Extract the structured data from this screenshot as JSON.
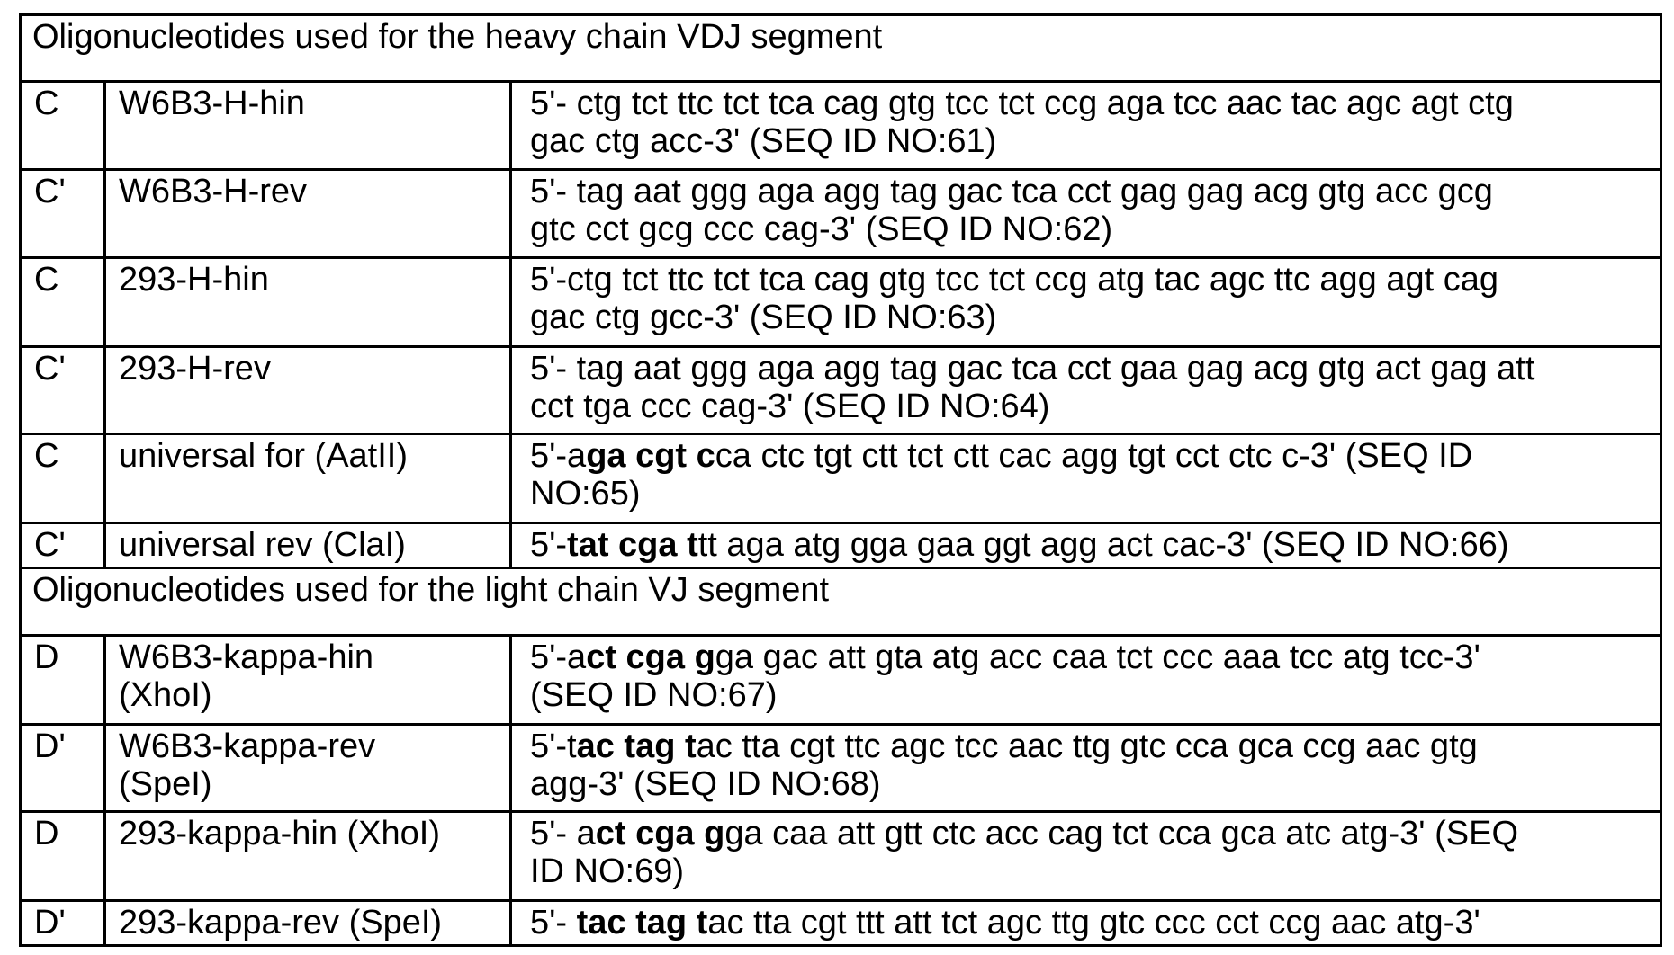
{
  "rows": [
    {
      "section": "Oligonucleotides used for the heavy chain VDJ segment"
    },
    {
      "code": "C",
      "name": [
        "W6B3-H-hin"
      ],
      "seq": [
        [
          {
            "t": "5'- ctg tct ttc tct tca cag gtg tcc tct ccg aga tcc aac tac agc agt ctg"
          }
        ],
        [
          {
            "t": "gac ctg acc-3' (SEQ ID NO:61)"
          }
        ]
      ]
    },
    {
      "code": "C'",
      "name": [
        "W6B3-H-rev"
      ],
      "seq": [
        [
          {
            "t": "5'- tag aat ggg aga agg tag gac tca cct gag gag acg gtg acc gcg"
          }
        ],
        [
          {
            "t": "gtc cct gcg ccc cag-3' (SEQ ID NO:62)"
          }
        ]
      ]
    },
    {
      "code": "C",
      "name": [
        "293-H-hin"
      ],
      "seq": [
        [
          {
            "t": "5'-ctg tct ttc tct tca cag gtg tcc tct ccg atg tac agc ttc agg agt cag"
          }
        ],
        [
          {
            "t": "gac ctg gcc-3' (SEQ ID NO:63)"
          }
        ]
      ]
    },
    {
      "code": "C'",
      "name": [
        "293-H-rev"
      ],
      "seq": [
        [
          {
            "t": "5'- tag aat ggg aga agg tag gac tca cct gaa gag acg gtg act gag att"
          }
        ],
        [
          {
            "t": "cct tga ccc cag-3' (SEQ ID NO:64)"
          }
        ]
      ]
    },
    {
      "code": "C",
      "name": [
        "universal for (AatII)"
      ],
      "seq": [
        [
          {
            "t": "5'-a"
          },
          {
            "t": "ga cgt c",
            "b": true
          },
          {
            "t": "ca ctc tgt ctt tct ctt cac agg tgt cct ctc c-3' (SEQ ID"
          }
        ],
        [
          {
            "t": "NO:65)"
          }
        ]
      ]
    },
    {
      "code": "C'",
      "name": [
        "universal rev (ClaI)"
      ],
      "seq": [
        [
          {
            "t": "5'-"
          },
          {
            "t": "tat cga t",
            "b": true
          },
          {
            "t": "tt aga atg gga gaa ggt agg act cac-3' (SEQ ID NO:66)"
          }
        ]
      ]
    },
    {
      "section": "Oligonucleotides used for the light chain VJ segment"
    },
    {
      "code": "D",
      "name": [
        "W6B3-kappa-hin",
        "(XhoI)"
      ],
      "seq": [
        [
          {
            "t": "5'-a"
          },
          {
            "t": "ct cga g",
            "b": true
          },
          {
            "t": "ga gac att gta atg acc caa tct ccc aaa tcc atg tcc-3'"
          }
        ],
        [
          {
            "t": "(SEQ ID NO:67)"
          }
        ]
      ]
    },
    {
      "code": "D'",
      "name": [
        "W6B3-kappa-rev",
        "(SpeI)"
      ],
      "seq": [
        [
          {
            "t": "5'-t"
          },
          {
            "t": "ac tag t",
            "b": true
          },
          {
            "t": "ac tta cgt ttc agc tcc aac ttg gtc cca gca ccg aac gtg"
          }
        ],
        [
          {
            "t": "agg-3' (SEQ ID NO:68)"
          }
        ]
      ]
    },
    {
      "code": "D",
      "name": [
        "293-kappa-hin (XhoI)"
      ],
      "seq": [
        [
          {
            "t": "5'- a"
          },
          {
            "t": "ct cga g",
            "b": true
          },
          {
            "t": "ga caa att gtt ctc acc cag tct cca gca atc atg-3' (SEQ"
          }
        ],
        [
          {
            "t": "ID NO:69)"
          }
        ]
      ]
    },
    {
      "code": "D'",
      "name": [
        "293-kappa-rev (SpeI)"
      ],
      "seq": [
        [
          {
            "t": "5'- "
          },
          {
            "t": "tac tag t",
            "b": true
          },
          {
            "t": "ac tta cgt ttt att tct agc ttg gtc ccc cct ccg aac atg-3'"
          }
        ]
      ]
    }
  ]
}
